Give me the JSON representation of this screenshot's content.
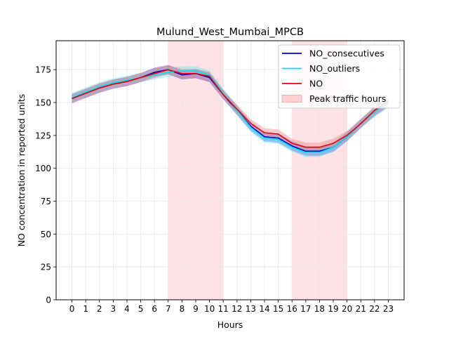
{
  "chart_data": {
    "type": "line",
    "title": "Mulund_West_Mumbai_MPCB",
    "xlabel": "Hours",
    "ylabel": "NO concentration in reported units",
    "x": [
      0,
      1,
      2,
      3,
      4,
      5,
      6,
      7,
      8,
      9,
      10,
      11,
      12,
      13,
      14,
      15,
      16,
      17,
      18,
      19,
      20,
      21,
      22,
      23
    ],
    "xticks": [
      "0",
      "1",
      "2",
      "3",
      "4",
      "5",
      "6",
      "7",
      "8",
      "9",
      "10",
      "11",
      "12",
      "13",
      "14",
      "15",
      "16",
      "17",
      "18",
      "19",
      "20",
      "21",
      "22",
      "23"
    ],
    "yticks": [
      "0",
      "25",
      "50",
      "75",
      "100",
      "125",
      "150",
      "175"
    ],
    "xlim": [
      -1.15,
      24.15
    ],
    "ylim": [
      0,
      197
    ],
    "grid": true,
    "legend_position": "top-right",
    "series": [
      {
        "name": "NO_consecutives",
        "color": "#0000cc",
        "band_color": "#3333cc",
        "values": [
          153,
          157,
          161,
          164,
          166,
          169,
          173,
          175,
          171,
          172,
          169,
          156,
          144,
          132,
          124,
          123,
          117,
          113,
          113,
          116,
          124,
          134,
          143,
          150
        ],
        "band": 3.5
      },
      {
        "name": "NO_outliers",
        "color": "#00e5ee",
        "band_color": "#66e6f0",
        "values": [
          154,
          158,
          162,
          165,
          167,
          169,
          171,
          173,
          174,
          174,
          171,
          157,
          144,
          131,
          123,
          122,
          116,
          112,
          112,
          116,
          124,
          134,
          143,
          150
        ],
        "band": 3.5
      },
      {
        "name": "NO",
        "color": "#e8000b",
        "band_color": "#f08080",
        "values": [
          153,
          157,
          161,
          164,
          166,
          169,
          172,
          175,
          172,
          172,
          170,
          156,
          145,
          134,
          127,
          126,
          119,
          116,
          116,
          119,
          125,
          134,
          144,
          151
        ],
        "band": 3.5
      }
    ],
    "shaded_regions": {
      "name": "Peak traffic hours",
      "color": "#ffcfd3",
      "ranges": [
        [
          7,
          11
        ],
        [
          16,
          20
        ]
      ]
    }
  }
}
